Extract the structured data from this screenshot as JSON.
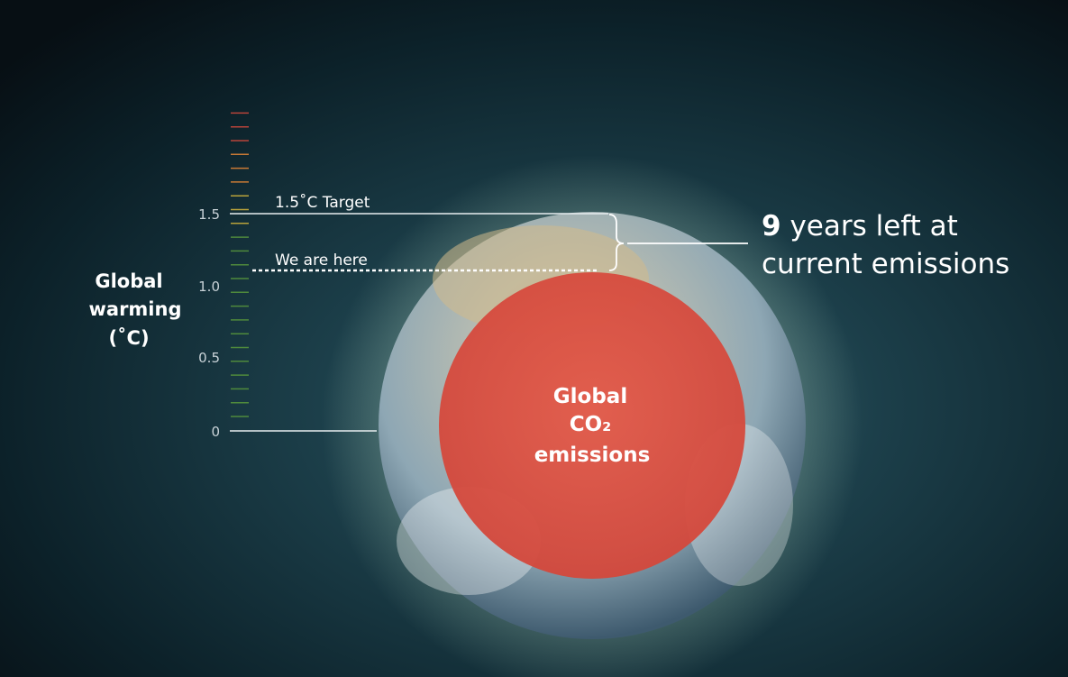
{
  "scale": {
    "title_lines": [
      "Global",
      "warming",
      "(˚C)"
    ],
    "ticks": [
      "1.5",
      "1.0",
      "0.5",
      "0"
    ]
  },
  "markers": {
    "target": "1.5˚C Target",
    "current": "We are here"
  },
  "callout": {
    "number": "9",
    "line1": "years left at",
    "line2": "current emissions"
  },
  "circle_label": [
    "Global",
    "CO₂",
    "emissions"
  ]
}
